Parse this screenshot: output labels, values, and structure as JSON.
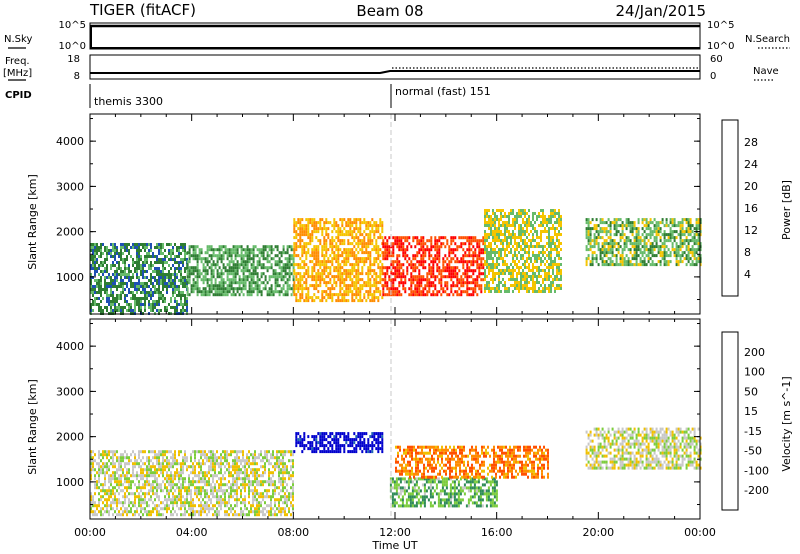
{
  "header": {
    "radar": "TIGER (fitACF)",
    "beam": "Beam 08",
    "date": "24/Jan/2015"
  },
  "nsky_panel": {
    "left_label": "N.Sky",
    "left_ticks": [
      "10^5",
      "10^0"
    ],
    "right_ticks": [
      "10^5",
      "10^0"
    ],
    "right_label": "N.Search"
  },
  "freq_panel": {
    "left_label_1": "Freq.",
    "left_label_2": "[MHz]",
    "left_ticks": [
      "18",
      "8"
    ],
    "right_ticks": [
      "60",
      "0"
    ],
    "right_label": "Nave"
  },
  "cpid_panel": {
    "label": "CPID",
    "segments": [
      {
        "name": "themis 3300",
        "start_hour": 0
      },
      {
        "name": "normal (fast) 151",
        "start_hour": 12
      }
    ]
  },
  "x_axis": {
    "label": "Time UT",
    "ticks": [
      "00:00",
      "04:00",
      "08:00",
      "12:00",
      "16:00",
      "20:00",
      "00:00"
    ]
  },
  "y_axis": {
    "label": "Slant Range [km]",
    "ticks": [
      "4000",
      "3000",
      "2000",
      "1000"
    ]
  },
  "power_colorbar": {
    "label": "Power [dB]",
    "ticks": [
      "28",
      "24",
      "20",
      "16",
      "12",
      "8",
      "4"
    ],
    "colors": [
      "#0000ff",
      "#1e50b4",
      "#2e7d32",
      "#66bb6a",
      "#f5c400",
      "#ff8c00",
      "#ff5000",
      "#ff0000"
    ]
  },
  "velocity_colorbar": {
    "label": "Velocity [m s^-1]",
    "ticks": [
      "200",
      "100",
      "50",
      "15",
      "-15",
      "-50",
      "-100",
      "-200"
    ],
    "colors": [
      "#0000cd",
      "#1e64b4",
      "#2e8b57",
      "#7ccd3c",
      "#c8c8c8",
      "#f0c000",
      "#ff8c00",
      "#ff5000",
      "#ff0000"
    ]
  },
  "chart_data": [
    {
      "type": "heatmap",
      "title": "Power",
      "xlabel": "Time UT",
      "ylabel": "Slant Range [km]",
      "xlim_hours": [
        0,
        24
      ],
      "ylim_km": [
        180,
        4600
      ],
      "colorbar_range_db": [
        0,
        32
      ],
      "regions": [
        {
          "t_start": 0.0,
          "t_end": 3.8,
          "r_low": 200,
          "r_high": 1750,
          "dominant_db": 10
        },
        {
          "t_start": 3.8,
          "t_end": 8.0,
          "r_low": 600,
          "r_high": 1700,
          "dominant_db": 12
        },
        {
          "t_start": 8.0,
          "t_end": 11.5,
          "r_low": 500,
          "r_high": 2300,
          "dominant_db": 20
        },
        {
          "t_start": 11.5,
          "t_end": 15.5,
          "r_low": 600,
          "r_high": 1900,
          "dominant_db": 28
        },
        {
          "t_start": 15.5,
          "t_end": 18.5,
          "r_low": 700,
          "r_high": 2500,
          "dominant_db": 16
        },
        {
          "t_start": 19.5,
          "t_end": 24.0,
          "r_low": 1300,
          "r_high": 2300,
          "dominant_db": 14
        }
      ]
    },
    {
      "type": "heatmap",
      "title": "Velocity",
      "xlabel": "Time UT",
      "ylabel": "Slant Range [km]",
      "xlim_hours": [
        0,
        24
      ],
      "ylim_km": [
        180,
        4600
      ],
      "colorbar_range_ms": [
        -200,
        200
      ],
      "regions": [
        {
          "t_start": 0.0,
          "t_end": 8.0,
          "r_low": 300,
          "r_high": 1700,
          "dominant_ms": 0
        },
        {
          "t_start": 8.0,
          "t_end": 11.5,
          "r_low": 1700,
          "r_high": 2100,
          "dominant_ms": 200
        },
        {
          "t_start": 11.8,
          "t_end": 16.0,
          "r_low": 500,
          "r_high": 1100,
          "dominant_ms": 60
        },
        {
          "t_start": 12.0,
          "t_end": 18.0,
          "r_low": 1100,
          "r_high": 1800,
          "dominant_ms": -100
        },
        {
          "t_start": 19.5,
          "t_end": 24.0,
          "r_low": 1300,
          "r_high": 2200,
          "dominant_ms": 0
        }
      ]
    }
  ]
}
